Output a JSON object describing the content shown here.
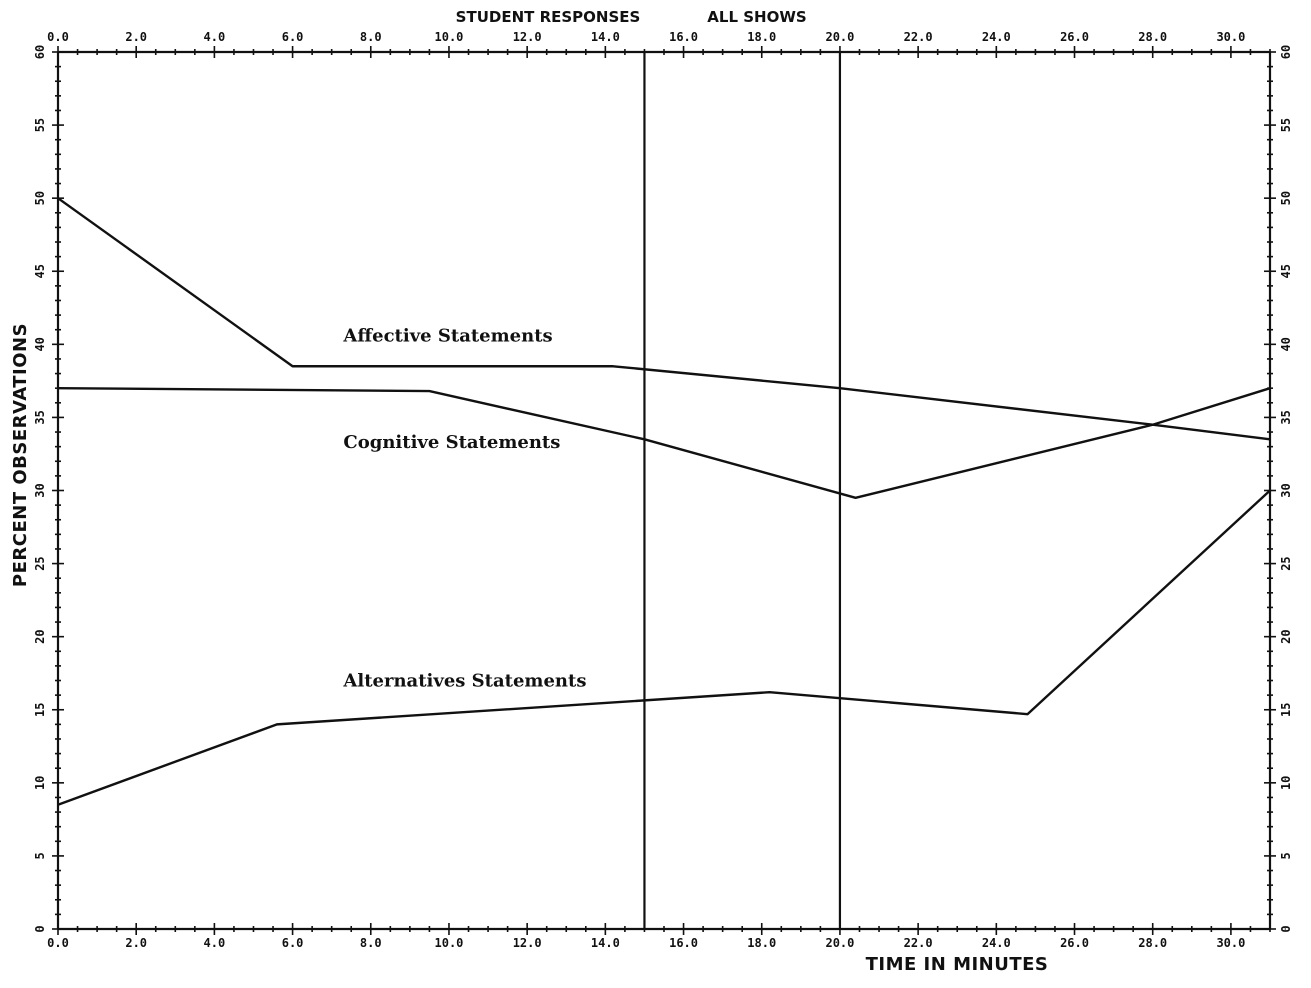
{
  "chart_data": {
    "type": "line",
    "title_left": "STUDENT RESPONSES",
    "title_right": "ALL SHOWS",
    "xlabel": "TIME IN MINUTES",
    "ylabel": "PERCENT OBSERVATIONS",
    "xlim": [
      0,
      31
    ],
    "ylim": [
      0,
      60
    ],
    "x_ticks": [
      0,
      2,
      4,
      6,
      8,
      10,
      12,
      14,
      16,
      18,
      20,
      22,
      24,
      26,
      28,
      30
    ],
    "x_tick_labels": [
      "0.0",
      "2.0",
      "4.0",
      "6.0",
      "8.0",
      "10.0",
      "12.0",
      "14.0",
      "16.0",
      "18.0",
      "20.0",
      "22.0",
      "24.0",
      "26.0",
      "28.0",
      "30.0"
    ],
    "y_ticks": [
      0,
      5,
      10,
      15,
      20,
      25,
      30,
      35,
      40,
      45,
      50,
      55,
      60
    ],
    "y_tick_labels": [
      "0",
      "5",
      "10",
      "15",
      "20",
      "25",
      "30",
      "35",
      "40",
      "45",
      "50",
      "55",
      "60"
    ],
    "vertical_lines_x": [
      15,
      20
    ],
    "series": [
      {
        "name": "Affective Statements",
        "x": [
          0,
          6,
          14.2,
          20,
          28,
          31
        ],
        "y": [
          50,
          38.5,
          38.5,
          37,
          34.5,
          33.5
        ]
      },
      {
        "name": "Cognitive Statements",
        "x": [
          0,
          9.5,
          15,
          20.4,
          28,
          31
        ],
        "y": [
          37,
          36.8,
          33.5,
          29.5,
          34.5,
          37
        ]
      },
      {
        "name": "Alternatives Statements",
        "x": [
          0,
          5.6,
          18.2,
          24.8,
          31
        ],
        "y": [
          8.5,
          14,
          16.2,
          14.7,
          30
        ]
      }
    ],
    "series_label_anchor_x": 7.3,
    "series_label_anchor_y": [
      40.2,
      32.9,
      16.6
    ],
    "grid": false,
    "legend": "none"
  }
}
